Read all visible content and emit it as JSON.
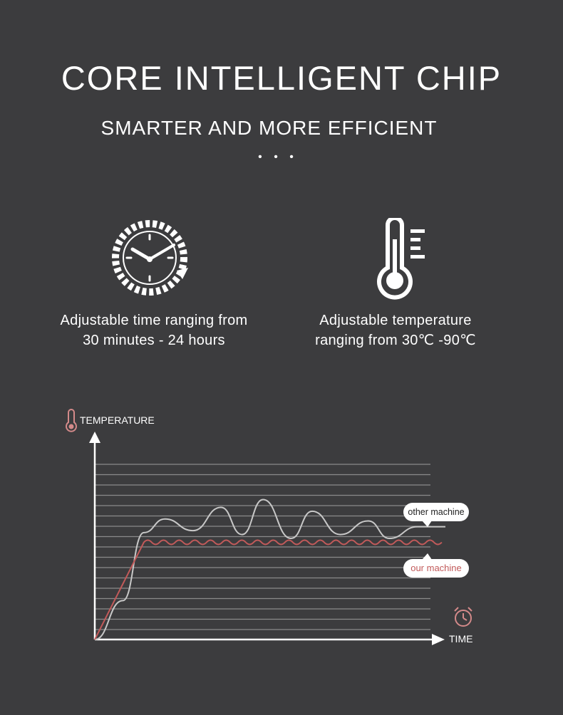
{
  "header": {
    "title": "CORE INTELLIGENT CHIP",
    "subtitle": "SMARTER AND MORE EFFICIENT",
    "dots": "• • •"
  },
  "features": [
    {
      "icon": "clock-icon",
      "line1": "Adjustable time ranging from",
      "line2": "30 minutes - 24 hours"
    },
    {
      "icon": "thermometer-icon",
      "line1": "Adjustable temperature",
      "line2": "ranging from 30℃  -90℃"
    }
  ],
  "colors": {
    "background": "#3c3c3e",
    "text": "#ffffff",
    "other_machine": "#c8c8c8",
    "our_machine": "#c25a5a",
    "gridline": "#8a8a8a"
  },
  "chart_data": {
    "type": "line",
    "ylabel": "TEMPERATURE",
    "xlabel": "TIME",
    "grid": true,
    "series": [
      {
        "name": "other machine",
        "x": [
          0,
          8,
          14,
          20,
          28,
          36,
          42,
          48,
          56,
          62,
          70,
          78,
          84,
          92,
          100
        ],
        "values": [
          0,
          20,
          55,
          62,
          56,
          68,
          54,
          72,
          52,
          66,
          54,
          61,
          52,
          58,
          58
        ],
        "pattern": "large fluctuating oscillation"
      },
      {
        "name": "our machine",
        "x": [
          0,
          14,
          100
        ],
        "values": [
          0,
          50,
          50
        ],
        "pattern": "small stable oscillation around setpoint"
      }
    ]
  }
}
